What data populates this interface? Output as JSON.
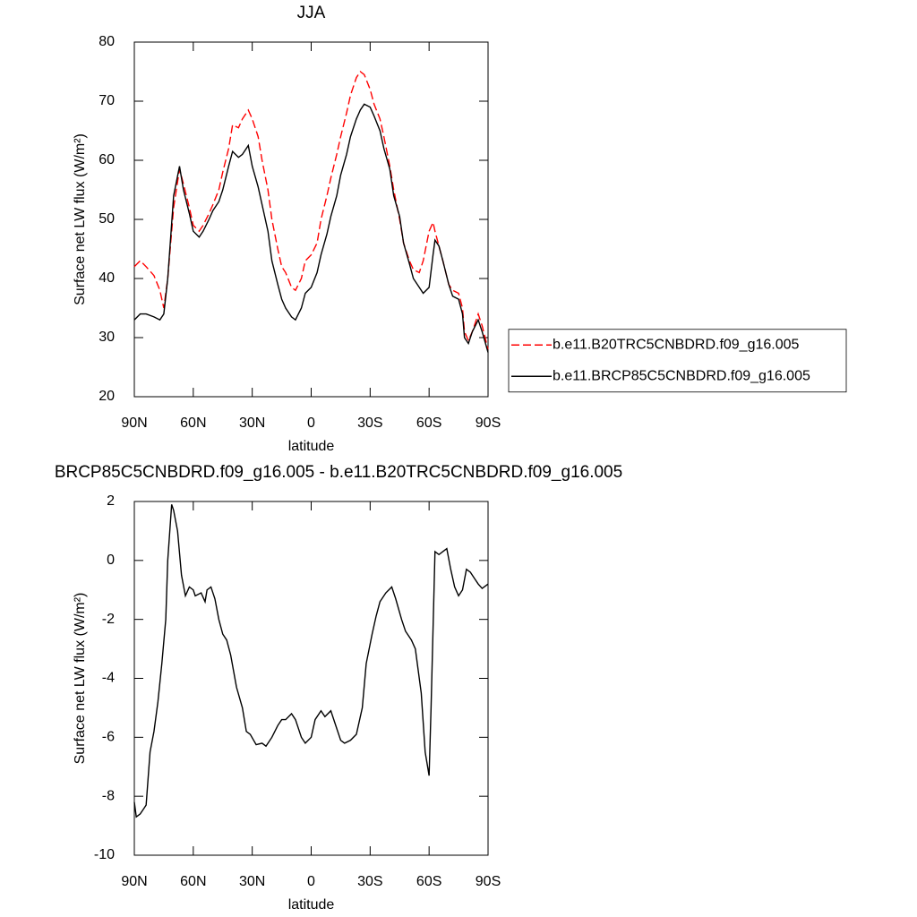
{
  "chart_data": [
    {
      "type": "line",
      "title": "JJA",
      "xlabel": "latitude",
      "ylabel": "Surface net LW flux (W/m²)",
      "x": [
        90,
        87,
        84,
        80,
        77,
        75,
        73,
        70,
        67,
        65,
        62,
        60,
        57,
        55,
        52,
        50,
        47,
        45,
        42,
        40,
        37,
        35,
        32,
        30,
        27,
        25,
        22,
        20,
        17,
        15,
        13,
        10,
        8,
        5,
        3,
        0,
        -3,
        -5,
        -8,
        -10,
        -13,
        -15,
        -18,
        -20,
        -23,
        -25,
        -27,
        -30,
        -32,
        -35,
        -37,
        -40,
        -42,
        -45,
        -47,
        -50,
        -52,
        -55,
        -57,
        -60,
        -62,
        -63,
        -65,
        -67,
        -70,
        -72,
        -75,
        -77,
        -78,
        -80,
        -82,
        -85,
        -87,
        -90
      ],
      "series": [
        {
          "name": "b.e11.B20TRC5CNBDRD.f09_g16.005",
          "color": "#ff0000",
          "line_style": "dashed",
          "values": [
            42,
            43,
            42,
            40.5,
            38,
            35,
            40,
            52,
            58.5,
            56,
            52,
            49,
            48,
            49,
            51,
            52.5,
            55,
            58,
            62,
            66,
            65.5,
            67,
            68.5,
            67,
            64,
            60,
            55,
            50,
            45,
            42,
            41,
            38.5,
            38,
            40,
            43,
            44,
            46,
            50,
            54,
            57,
            61,
            64,
            68,
            71,
            74,
            75,
            74.5,
            72,
            69.5,
            67,
            64,
            59,
            55,
            50,
            46,
            43,
            41.5,
            41,
            43,
            48,
            49.5,
            48,
            45.5,
            43,
            39,
            38,
            37.5,
            35,
            31,
            29.5,
            31,
            34,
            32,
            28
          ]
        },
        {
          "name": "b.e11.BRCP85C5CNBDRD.f09_g16.005",
          "color": "#000000",
          "line_style": "solid",
          "values": [
            33,
            34,
            34,
            33.5,
            33,
            34,
            40,
            54,
            59,
            55,
            51,
            48,
            47,
            48,
            50,
            51.5,
            53,
            55,
            59,
            61.5,
            60.5,
            61,
            62.5,
            59,
            55.5,
            52.5,
            48,
            43,
            39,
            36.5,
            35,
            33.5,
            33,
            35,
            37.5,
            38.5,
            41,
            44,
            47.5,
            50.5,
            54,
            57.5,
            61,
            64,
            67,
            68.5,
            69.5,
            69,
            67.5,
            65,
            62,
            58.5,
            54,
            50.5,
            46,
            42.5,
            40,
            38.5,
            37.5,
            38.5,
            44,
            46.5,
            45.5,
            43,
            39,
            37,
            36.5,
            34,
            30,
            29,
            31,
            33,
            31,
            27.5
          ]
        }
      ],
      "xlim": [
        90,
        -90
      ],
      "xticks": [
        {
          "value": 90,
          "label": "90N"
        },
        {
          "value": 60,
          "label": "60N"
        },
        {
          "value": 30,
          "label": "30N"
        },
        0,
        {
          "value": -30,
          "label": "30S"
        },
        {
          "value": -60,
          "label": "60S"
        },
        {
          "value": -90,
          "label": "90S"
        }
      ],
      "ylim": [
        20,
        80
      ],
      "yticks": [
        20,
        30,
        40,
        50,
        60,
        70,
        80
      ],
      "legend": "right"
    },
    {
      "type": "line",
      "title": "BRCP85C5CNBDRD.f09_g16.005 - b.e11.B20TRC5CNBDRD.f09_g16.005",
      "xlabel": "latitude",
      "ylabel": "Surface net LW flux (W/m²)",
      "color": "#000000",
      "x": [
        90,
        89,
        87,
        85,
        84,
        82,
        80,
        78,
        76,
        74,
        73,
        71,
        70,
        68,
        66,
        64,
        62,
        60,
        59,
        56,
        54,
        53,
        51,
        49,
        47,
        45,
        43,
        41,
        38,
        35,
        33,
        31,
        28,
        25,
        23,
        20,
        17,
        15,
        13,
        10,
        8,
        5,
        3,
        0,
        -2,
        -5,
        -7,
        -10,
        -12,
        -15,
        -17,
        -20,
        -23,
        -26,
        -28,
        -31,
        -33,
        -35,
        -38,
        -41,
        -43,
        -46,
        -48,
        -51,
        -53,
        -56,
        -58,
        -60,
        -61,
        -63,
        -65,
        -67,
        -69,
        -71,
        -73,
        -75,
        -77,
        -79,
        -81,
        -83,
        -85,
        -87,
        -90
      ],
      "values": [
        -8.2,
        -8.7,
        -8.6,
        -8.4,
        -8.3,
        -6.5,
        -5.8,
        -4.8,
        -3.5,
        -2,
        0,
        1.9,
        1.7,
        1,
        -0.5,
        -1.2,
        -0.9,
        -1,
        -1.2,
        -1.1,
        -1.4,
        -1,
        -0.9,
        -1.3,
        -2,
        -2.5,
        -2.7,
        -3.2,
        -4.3,
        -5,
        -5.8,
        -5.9,
        -6.25,
        -6.2,
        -6.3,
        -6,
        -5.6,
        -5.4,
        -5.4,
        -5.2,
        -5.4,
        -6,
        -6.2,
        -6,
        -5.4,
        -5.1,
        -5.3,
        -5.1,
        -5.5,
        -6.1,
        -6.2,
        -6.1,
        -5.9,
        -5,
        -3.5,
        -2.5,
        -1.9,
        -1.4,
        -1.1,
        -0.9,
        -1.3,
        -2,
        -2.4,
        -2.7,
        -3,
        -4.5,
        -6.5,
        -7.3,
        -5,
        0.3,
        0.2,
        0.3,
        0.4,
        -0.3,
        -0.9,
        -1.2,
        -1,
        -0.3,
        -0.4,
        -0.6,
        -0.8,
        -0.95,
        -0.8
      ],
      "xlim": [
        90,
        -90
      ],
      "xticks": [
        {
          "value": 90,
          "label": "90N"
        },
        {
          "value": 60,
          "label": "60N"
        },
        {
          "value": 30,
          "label": "30N"
        },
        0,
        {
          "value": -30,
          "label": "30S"
        },
        {
          "value": -60,
          "label": "60S"
        },
        {
          "value": -90,
          "label": "90S"
        }
      ],
      "ylim": [
        -10,
        2
      ],
      "yticks": [
        -10,
        -8,
        -6,
        -4,
        -2,
        0,
        2
      ]
    }
  ]
}
